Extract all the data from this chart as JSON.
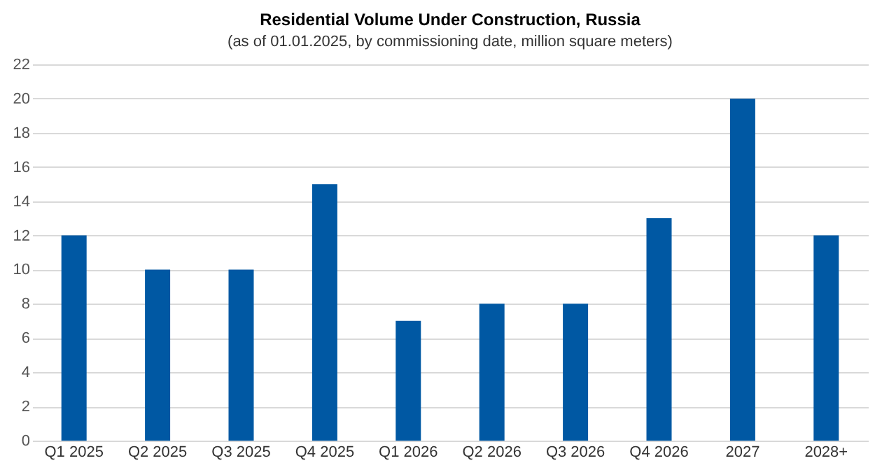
{
  "chart_data": {
    "type": "bar",
    "title": "Residential Volume Under Construction, Russia",
    "subtitle": "(as of 01.01.2025,  by commissioning date, million square meters)",
    "categories": [
      "Q1 2025",
      "Q2 2025",
      "Q3 2025",
      "Q4 2025",
      "Q1 2026",
      "Q2 2026",
      "Q3 2026",
      "Q4 2026",
      "2027",
      "2028+"
    ],
    "values": [
      12,
      10,
      10,
      15,
      7,
      8,
      8,
      13,
      20,
      12
    ],
    "color": "#0058a3",
    "ylim": [
      0,
      22
    ],
    "yticks": [
      0,
      2,
      4,
      6,
      8,
      10,
      12,
      14,
      16,
      18,
      20,
      22
    ],
    "grid": "y"
  }
}
